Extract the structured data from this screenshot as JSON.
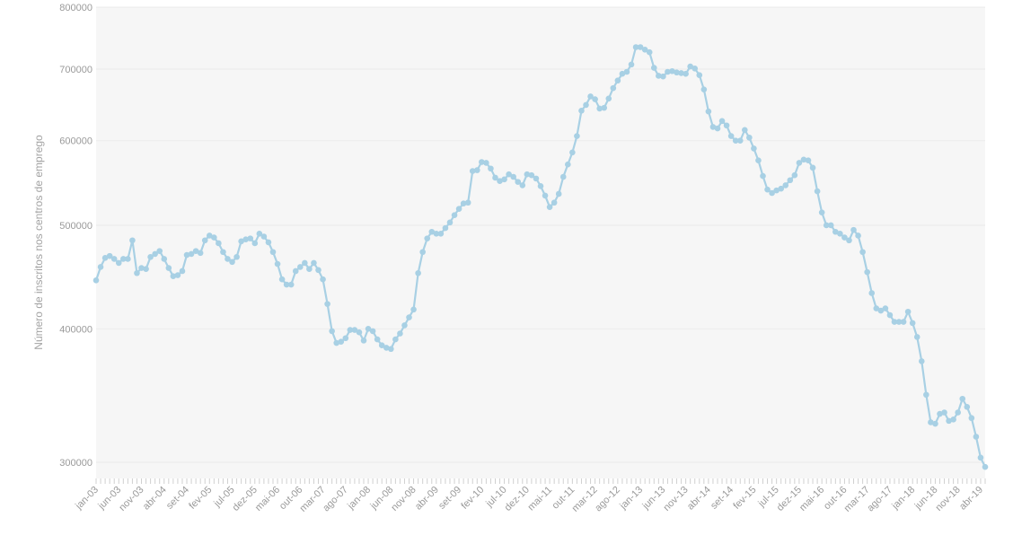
{
  "chart_data": {
    "type": "line",
    "title": "",
    "xlabel": "",
    "ylabel": "Número de inscritos nos centros de emprego",
    "y_scale": "log",
    "ylim": [
      290000,
      800000
    ],
    "y_ticks": [
      300000,
      400000,
      500000,
      600000,
      700000,
      800000
    ],
    "y_tick_labels": [
      "300000",
      "400000",
      "500000",
      "600000",
      "700000",
      "800000"
    ],
    "x_tick_labels": [
      "jan-03",
      "jun-03",
      "nov-03",
      "abr-04",
      "set-04",
      "fev-05",
      "jul-05",
      "dez-05",
      "mai-06",
      "out-06",
      "mar-07",
      "ago-07",
      "jan-08",
      "jun-08",
      "nov-08",
      "abr-09",
      "set-09",
      "fev-10",
      "jul-10",
      "dez-10",
      "mai-11",
      "out-11",
      "mar-12",
      "ago-12",
      "jan-13",
      "jun-13",
      "nov-13",
      "abr-14",
      "set-14",
      "fev-15",
      "jul-15",
      "dez-15",
      "mai-16",
      "out-16",
      "mar-17",
      "ago-17",
      "jan-18",
      "jun-18",
      "nov-18",
      "abr-19"
    ],
    "grid": true,
    "series_color": "#a8d0e4",
    "series": [
      {
        "start": "jan-03",
        "frequency": "monthly",
        "values": [
          444000,
          457000,
          466000,
          468000,
          465000,
          461000,
          465000,
          465000,
          484000,
          451000,
          456000,
          455000,
          467000,
          470000,
          473000,
          465000,
          456000,
          448000,
          449000,
          453000,
          469000,
          470000,
          473000,
          471000,
          484000,
          489000,
          487000,
          481000,
          472000,
          465000,
          462000,
          467000,
          483000,
          485000,
          486000,
          481000,
          491000,
          488000,
          482000,
          472000,
          460000,
          445000,
          440000,
          440000,
          453000,
          457000,
          461000,
          455000,
          461000,
          454000,
          445000,
          422000,
          398000,
          388000,
          389000,
          392000,
          399000,
          399000,
          397000,
          390000,
          400000,
          398000,
          391000,
          386000,
          384000,
          383000,
          391000,
          396000,
          403000,
          410000,
          417000,
          451000,
          472000,
          486000,
          493000,
          491000,
          491000,
          497000,
          503000,
          511000,
          518000,
          524000,
          525000,
          562000,
          563000,
          573000,
          572000,
          565000,
          554000,
          550000,
          552000,
          558000,
          555000,
          549000,
          545000,
          558000,
          557000,
          553000,
          544000,
          533000,
          520000,
          525000,
          535000,
          555000,
          570000,
          585000,
          606000,
          640000,
          648000,
          660000,
          656000,
          643000,
          644000,
          657000,
          672000,
          683000,
          693000,
          696000,
          707000,
          734000,
          734000,
          730000,
          726000,
          702000,
          690000,
          689000,
          696000,
          697000,
          695000,
          694000,
          693000,
          704000,
          701000,
          691000,
          670000,
          639000,
          618000,
          616000,
          626000,
          620000,
          606000,
          600000,
          600000,
          614000,
          604000,
          590000,
          575000,
          556000,
          540000,
          536000,
          539000,
          541000,
          545000,
          551000,
          557000,
          572000,
          576000,
          575000,
          566000,
          538000,
          514000,
          500000,
          500000,
          493000,
          491000,
          487000,
          484000,
          495000,
          489000,
          472000,
          452000,
          432000,
          418000,
          416000,
          418000,
          412000,
          406000,
          406000,
          406000,
          415000,
          405000,
          393000,
          373000,
          347000,
          327000,
          326000,
          333000,
          334000,
          328000,
          329000,
          334000,
          344000,
          338000,
          330000,
          317000,
          303000,
          297000
        ]
      }
    ]
  }
}
